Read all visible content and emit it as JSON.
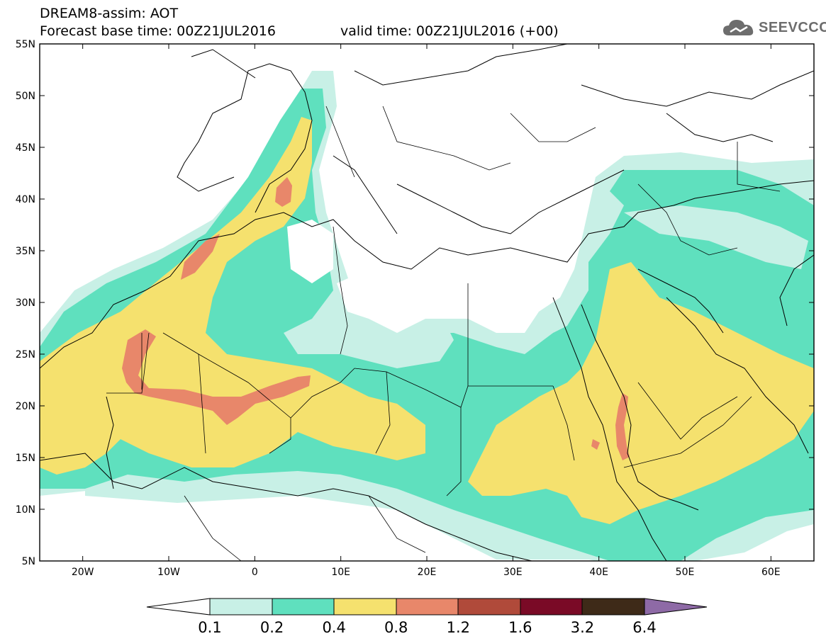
{
  "header": {
    "title": "DREAM8-assim: AOT",
    "forecast_base": "Forecast base time: 00Z21JUL2016",
    "valid_time": "valid time: 00Z21JUL2016 (+00)",
    "logo_text": "SEEVCCC",
    "logo_icon": "cloud-icon"
  },
  "map": {
    "lon_range": [
      -25,
      65
    ],
    "lat_range": [
      5,
      55
    ],
    "lat_ticks": [
      "55N",
      "50N",
      "45N",
      "40N",
      "35N",
      "30N",
      "25N",
      "20N",
      "15N",
      "10N",
      "5N"
    ],
    "lon_ticks": [
      "20W",
      "10W",
      "0",
      "10E",
      "20E",
      "30E",
      "40E",
      "50E",
      "60E"
    ]
  },
  "colorbar": {
    "labels": [
      "0.1",
      "0.2",
      "0.4",
      "0.8",
      "1.2",
      "1.6",
      "3.2",
      "6.4"
    ],
    "colors": [
      "#ffffff",
      "#c8f0e6",
      "#5fe0be",
      "#f5e16e",
      "#e8876a",
      "#b04a3a",
      "#7a0a26",
      "#3e2a18",
      "#8e6aa6"
    ]
  },
  "palette": {
    "very_light": "#c8f0e6",
    "light": "#5fe0be",
    "yellow": "#f5e16e",
    "salmon": "#e8876a"
  }
}
